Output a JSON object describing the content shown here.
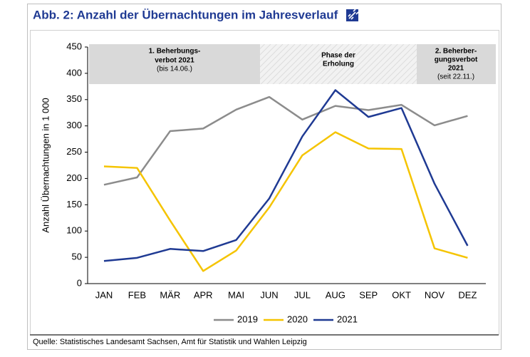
{
  "title": "Abb. 2: Anzahl der Übernachtungen im Jahresverlauf",
  "source": "Quelle: Statistisches Landesamt Sachsen, Amt für Statistik und Wahlen Leipzig",
  "chart_data": {
    "type": "line",
    "y_label": "Anzahl Übernachtungen in 1 000",
    "categories": [
      "JAN",
      "FEB",
      "MÄR",
      "APR",
      "MAI",
      "JUN",
      "JUL",
      "AUG",
      "SEP",
      "OKT",
      "NOV",
      "DEZ"
    ],
    "series": [
      {
        "name": "2019",
        "color": "#8c8c8c",
        "values": [
          188,
          202,
          290,
          295,
          331,
          355,
          312,
          338,
          330,
          340,
          301,
          319
        ]
      },
      {
        "name": "2020",
        "color": "#f5c400",
        "values": [
          223,
          220,
          120,
          24,
          63,
          145,
          244,
          288,
          257,
          256,
          67,
          49
        ]
      },
      {
        "name": "2021",
        "color": "#1f3a93",
        "values": [
          43,
          49,
          66,
          62,
          83,
          162,
          280,
          368,
          317,
          334,
          190,
          72
        ]
      }
    ],
    "ylim": [
      0,
      450
    ],
    "yticks": [
      0,
      50,
      100,
      150,
      200,
      250,
      300,
      350,
      400,
      450
    ],
    "grid": false,
    "annotations": [
      {
        "title": [
          "1. Beherbungs-",
          "verbot 2021"
        ],
        "note": "(bis 14.06.)"
      },
      {
        "title": [
          "Phase der",
          "Erholung"
        ]
      },
      {
        "title": [
          "2. Beherber-",
          "gungsverbot",
          "2021"
        ],
        "note": "(seit 22.11.)"
      }
    ]
  }
}
